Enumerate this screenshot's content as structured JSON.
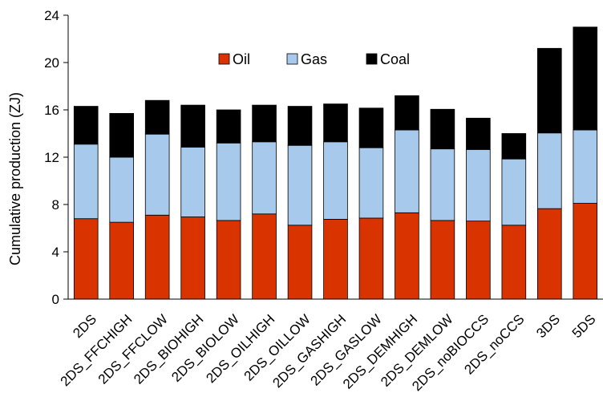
{
  "chart_data": {
    "type": "bar",
    "stacked": true,
    "ylabel": "Cumulative production (ZJ)",
    "xlabel": "",
    "ylim": [
      0,
      24
    ],
    "yticks": [
      0,
      4,
      8,
      12,
      16,
      20,
      24
    ],
    "grid": false,
    "legend_position": "top-center",
    "categories": [
      "2DS",
      "2DS_FFCHIGH",
      "2DS_FFCLOW",
      "2DS_BIOHIGH",
      "2DS_BIOLOW",
      "2DS_OILHIGH",
      "2DS_OILLOW",
      "2DS_GASHIGH",
      "2DS_GASLOW",
      "2DS_DEMHIGH",
      "2DS_DEMLOW",
      "2DS_noBIOCCS",
      "2DS_noCCS",
      "3DS",
      "5DS"
    ],
    "series": [
      {
        "name": "Oil",
        "color": "#d93400",
        "values": [
          6.8,
          6.5,
          7.1,
          6.95,
          6.65,
          7.2,
          6.25,
          6.75,
          6.85,
          7.3,
          6.65,
          6.6,
          6.25,
          7.65,
          8.1
        ]
      },
      {
        "name": "Gas",
        "color": "#a6c9ec",
        "values": [
          6.3,
          5.5,
          6.85,
          5.9,
          6.55,
          6.1,
          6.75,
          6.55,
          5.95,
          7.0,
          6.05,
          6.05,
          5.6,
          6.4,
          6.2
        ]
      },
      {
        "name": "Coal",
        "color": "#000000",
        "values": [
          3.2,
          3.7,
          2.85,
          3.55,
          2.8,
          3.1,
          3.3,
          3.2,
          3.35,
          2.9,
          3.35,
          2.65,
          2.15,
          7.15,
          8.7
        ]
      }
    ]
  }
}
